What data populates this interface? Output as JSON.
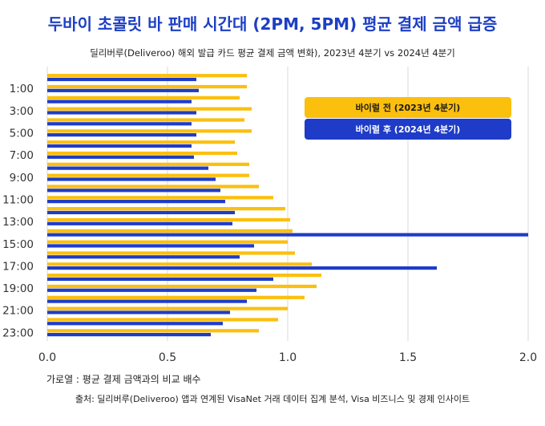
{
  "title": "두바이 초콜릿 바 판매 시간대 (2PM, 5PM) 평균 결제 금액 급증",
  "subtitle": "딜리버루(Deliveroo) 해외 발급 카드 평균 결제 금액 변화), 2023년 4분기 vs 2024년 4분기",
  "note": "가로열 : 평균 결제 금액과의 비교 배수",
  "source": "출처: 딜리버루(Deliveroo) 앱과 연계된 VisaNet 거래 데이터 집계 분석, Visa 비즈니스 및 경제 인사이트",
  "colors": {
    "before": "#fbbf0e",
    "after": "#1e3cc8",
    "grid": "#d9d9d9"
  },
  "chart_data": {
    "type": "bar",
    "orientation": "horizontal",
    "categories": [
      "0:00",
      "1:00",
      "2:00",
      "3:00",
      "4:00",
      "5:00",
      "6:00",
      "7:00",
      "8:00",
      "9:00",
      "10:00",
      "11:00",
      "12:00",
      "13:00",
      "14:00",
      "15:00",
      "16:00",
      "17:00",
      "18:00",
      "19:00",
      "20:00",
      "21:00",
      "22:00",
      "23:00"
    ],
    "category_labels_shown": [
      "1:00",
      "3:00",
      "5:00",
      "7:00",
      "9:00",
      "11:00",
      "13:00",
      "15:00",
      "17:00",
      "19:00",
      "21:00",
      "23:00"
    ],
    "series": [
      {
        "name": "바이럴 전 (2023년 4분기)",
        "color": "#fbbf0e",
        "values": [
          0.83,
          0.83,
          0.8,
          0.85,
          0.82,
          0.85,
          0.78,
          0.79,
          0.84,
          0.84,
          0.88,
          0.94,
          0.99,
          1.01,
          1.02,
          1.0,
          1.03,
          1.1,
          1.14,
          1.12,
          1.07,
          1.0,
          0.96,
          0.88
        ]
      },
      {
        "name": "바이럴 후 (2024년 4분기)",
        "color": "#1e3cc8",
        "values": [
          0.62,
          0.63,
          0.6,
          0.62,
          0.6,
          0.62,
          0.6,
          0.61,
          0.67,
          0.7,
          0.72,
          0.74,
          0.78,
          0.77,
          2.0,
          0.86,
          0.8,
          1.62,
          0.94,
          0.87,
          0.83,
          0.76,
          0.73,
          0.68
        ]
      }
    ],
    "xlim": [
      0,
      2.0
    ],
    "xticks": [
      "0.0",
      "0.5",
      "1.0",
      "1.5",
      "2.0"
    ],
    "grid": true,
    "legend_position": "top-right"
  }
}
